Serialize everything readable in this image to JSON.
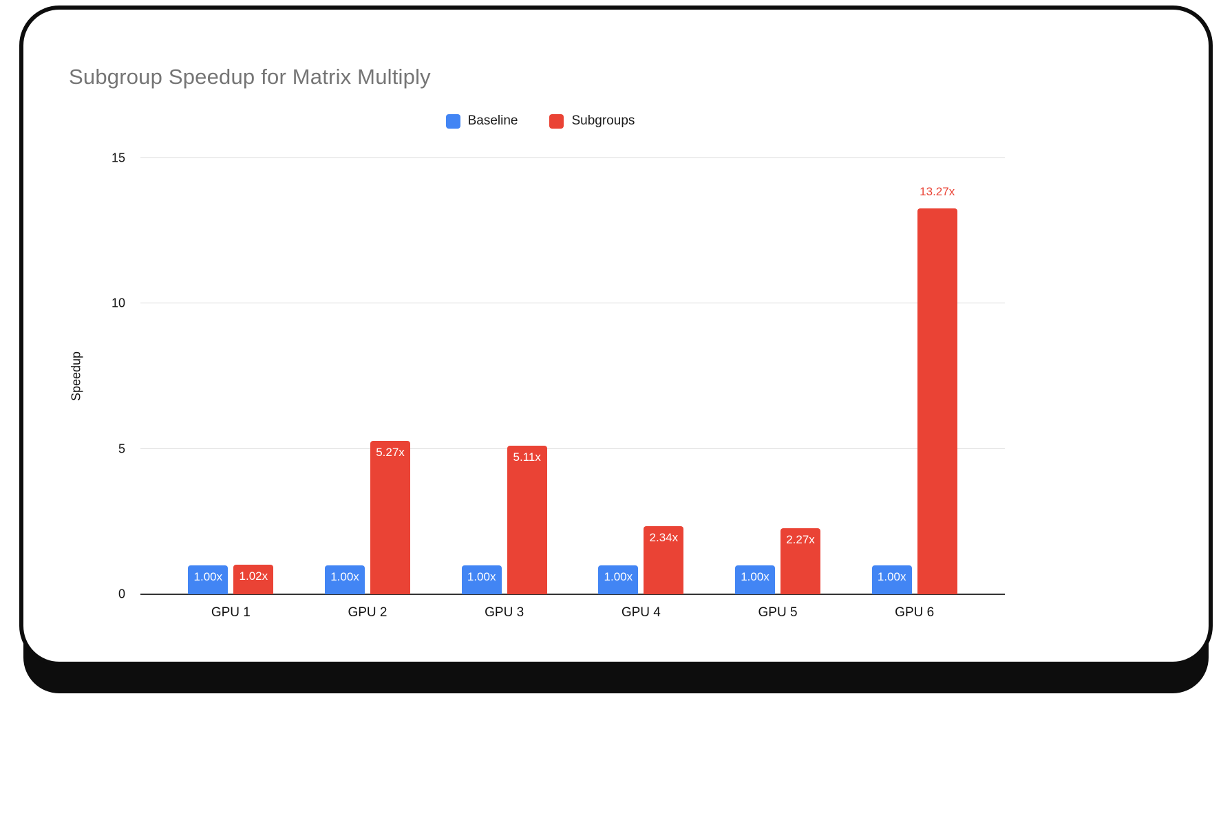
{
  "chart_data": {
    "type": "bar",
    "title": "Subgroup Speedup for Matrix Multiply",
    "ylabel": "Speedup",
    "xlabel": "",
    "categories": [
      "GPU 1",
      "GPU 2",
      "GPU 3",
      "GPU 4",
      "GPU 5",
      "GPU 6"
    ],
    "series": [
      {
        "name": "Baseline",
        "color": "#4285F4",
        "values": [
          1.0,
          1.0,
          1.0,
          1.0,
          1.0,
          1.0
        ],
        "labels": [
          "1.00x",
          "1.00x",
          "1.00x",
          "1.00x",
          "1.00x",
          "1.00x"
        ],
        "label_placement": [
          "inside",
          "inside",
          "inside",
          "inside",
          "inside",
          "inside"
        ],
        "label_color_inside": "#ffffff",
        "label_color_above": "#4285F4"
      },
      {
        "name": "Subgroups",
        "color": "#EA4335",
        "values": [
          1.02,
          5.27,
          5.11,
          2.34,
          2.27,
          13.27
        ],
        "labels": [
          "1.02x",
          "5.27x",
          "5.11x",
          "2.34x",
          "2.27x",
          "13.27x"
        ],
        "label_placement": [
          "inside",
          "inside",
          "inside",
          "inside",
          "inside",
          "above"
        ],
        "label_color_inside": "#ffffff",
        "label_color_above": "#EA4335"
      }
    ],
    "ylim": [
      0,
      15
    ],
    "yticks": [
      0,
      5,
      10,
      15
    ],
    "grid": true,
    "legend_position": "top",
    "gridline_color": "#dadada",
    "axis_line_color": "#333333"
  }
}
